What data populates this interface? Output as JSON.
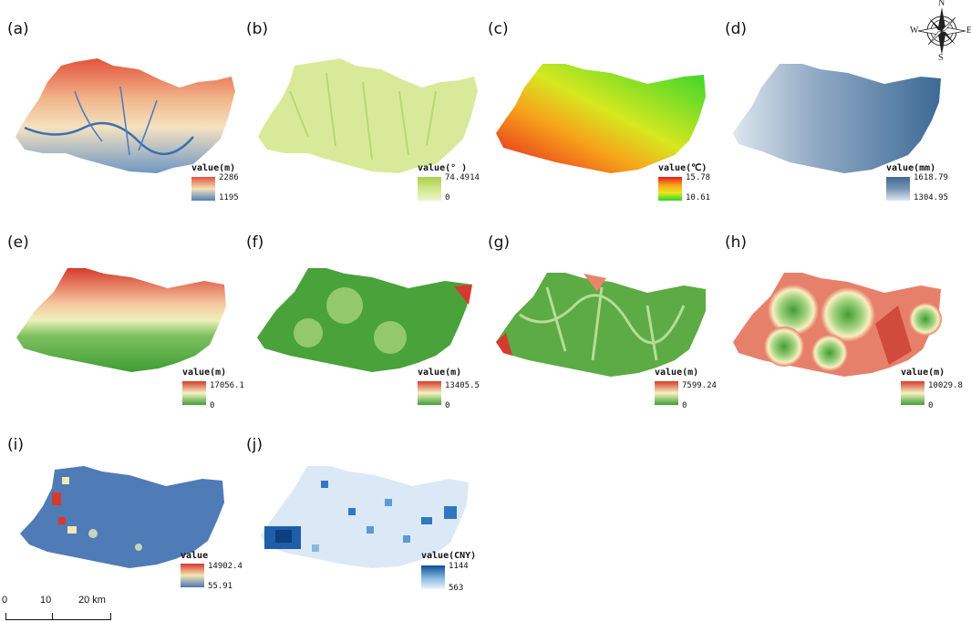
{
  "panels": [
    {
      "id": "a",
      "label": "(a)",
      "legend": {
        "title": "value(m)",
        "max": "2286",
        "min": "1195"
      },
      "colors": {
        "top": "#e3533b",
        "mid": "#f3e2b9",
        "bot": "#4f7fb6"
      }
    },
    {
      "id": "b",
      "label": "(b)",
      "legend": {
        "title": "value(° )",
        "max": "74.4914",
        "min": "0"
      },
      "colors": {
        "top": "#a9cf4c",
        "mid": "#d2e68c",
        "bot": "#eef5cc"
      }
    },
    {
      "id": "c",
      "label": "(c)",
      "legend": {
        "title": "value(℃)",
        "max": "15.78",
        "min": "10.61"
      },
      "colors": {
        "top": "#e31a1c",
        "mid": "#f7a21b",
        "bot": "#2bd42e"
      }
    },
    {
      "id": "d",
      "label": "(d)",
      "legend": {
        "title": "value(mm)",
        "max": "1618.79",
        "min": "1304.95"
      },
      "colors": {
        "top": "#3d6a96",
        "mid": "#7896b5",
        "bot": "#dde7f1"
      }
    },
    {
      "id": "e",
      "label": "(e)",
      "legend": {
        "title": "value(m)",
        "max": "17056.1",
        "min": "0"
      },
      "colors": {
        "top": "#d63a2e",
        "mid": "#f6f2c3",
        "bot": "#3f9e34"
      }
    },
    {
      "id": "f",
      "label": "(f)",
      "legend": {
        "title": "value(m)",
        "max": "13405.5",
        "min": "0"
      },
      "colors": {
        "top": "#d63a2e",
        "mid": "#f6f2c3",
        "bot": "#3f9e34"
      }
    },
    {
      "id": "g",
      "label": "(g)",
      "legend": {
        "title": "value(m)",
        "max": "7599.24",
        "min": "0"
      },
      "colors": {
        "top": "#d63a2e",
        "mid": "#f6f2c3",
        "bot": "#3f9e34"
      }
    },
    {
      "id": "h",
      "label": "(h)",
      "legend": {
        "title": "value(m)",
        "max": "10029.8",
        "min": "0"
      },
      "colors": {
        "top": "#d63a2e",
        "mid": "#f6f2c3",
        "bot": "#3f9e34"
      }
    },
    {
      "id": "i",
      "label": "(i)",
      "legend": {
        "title": "value",
        "max": "14902.4",
        "min": "55.91"
      },
      "colors": {
        "top": "#d7392e",
        "mid": "#f3e7b3",
        "bot": "#4c74b3"
      }
    },
    {
      "id": "j",
      "label": "(j)",
      "legend": {
        "title": "value(CNY)",
        "max": "1144",
        "min": "563"
      },
      "colors": {
        "top": "#0b4f9a",
        "mid": "#7fb3dd",
        "bot": "#eef5fc"
      }
    }
  ],
  "scalebar": {
    "zero": "0",
    "mid": "10",
    "end": "20 km"
  },
  "compass": {
    "n": "N",
    "s": "S",
    "e": "E",
    "w": "W"
  }
}
